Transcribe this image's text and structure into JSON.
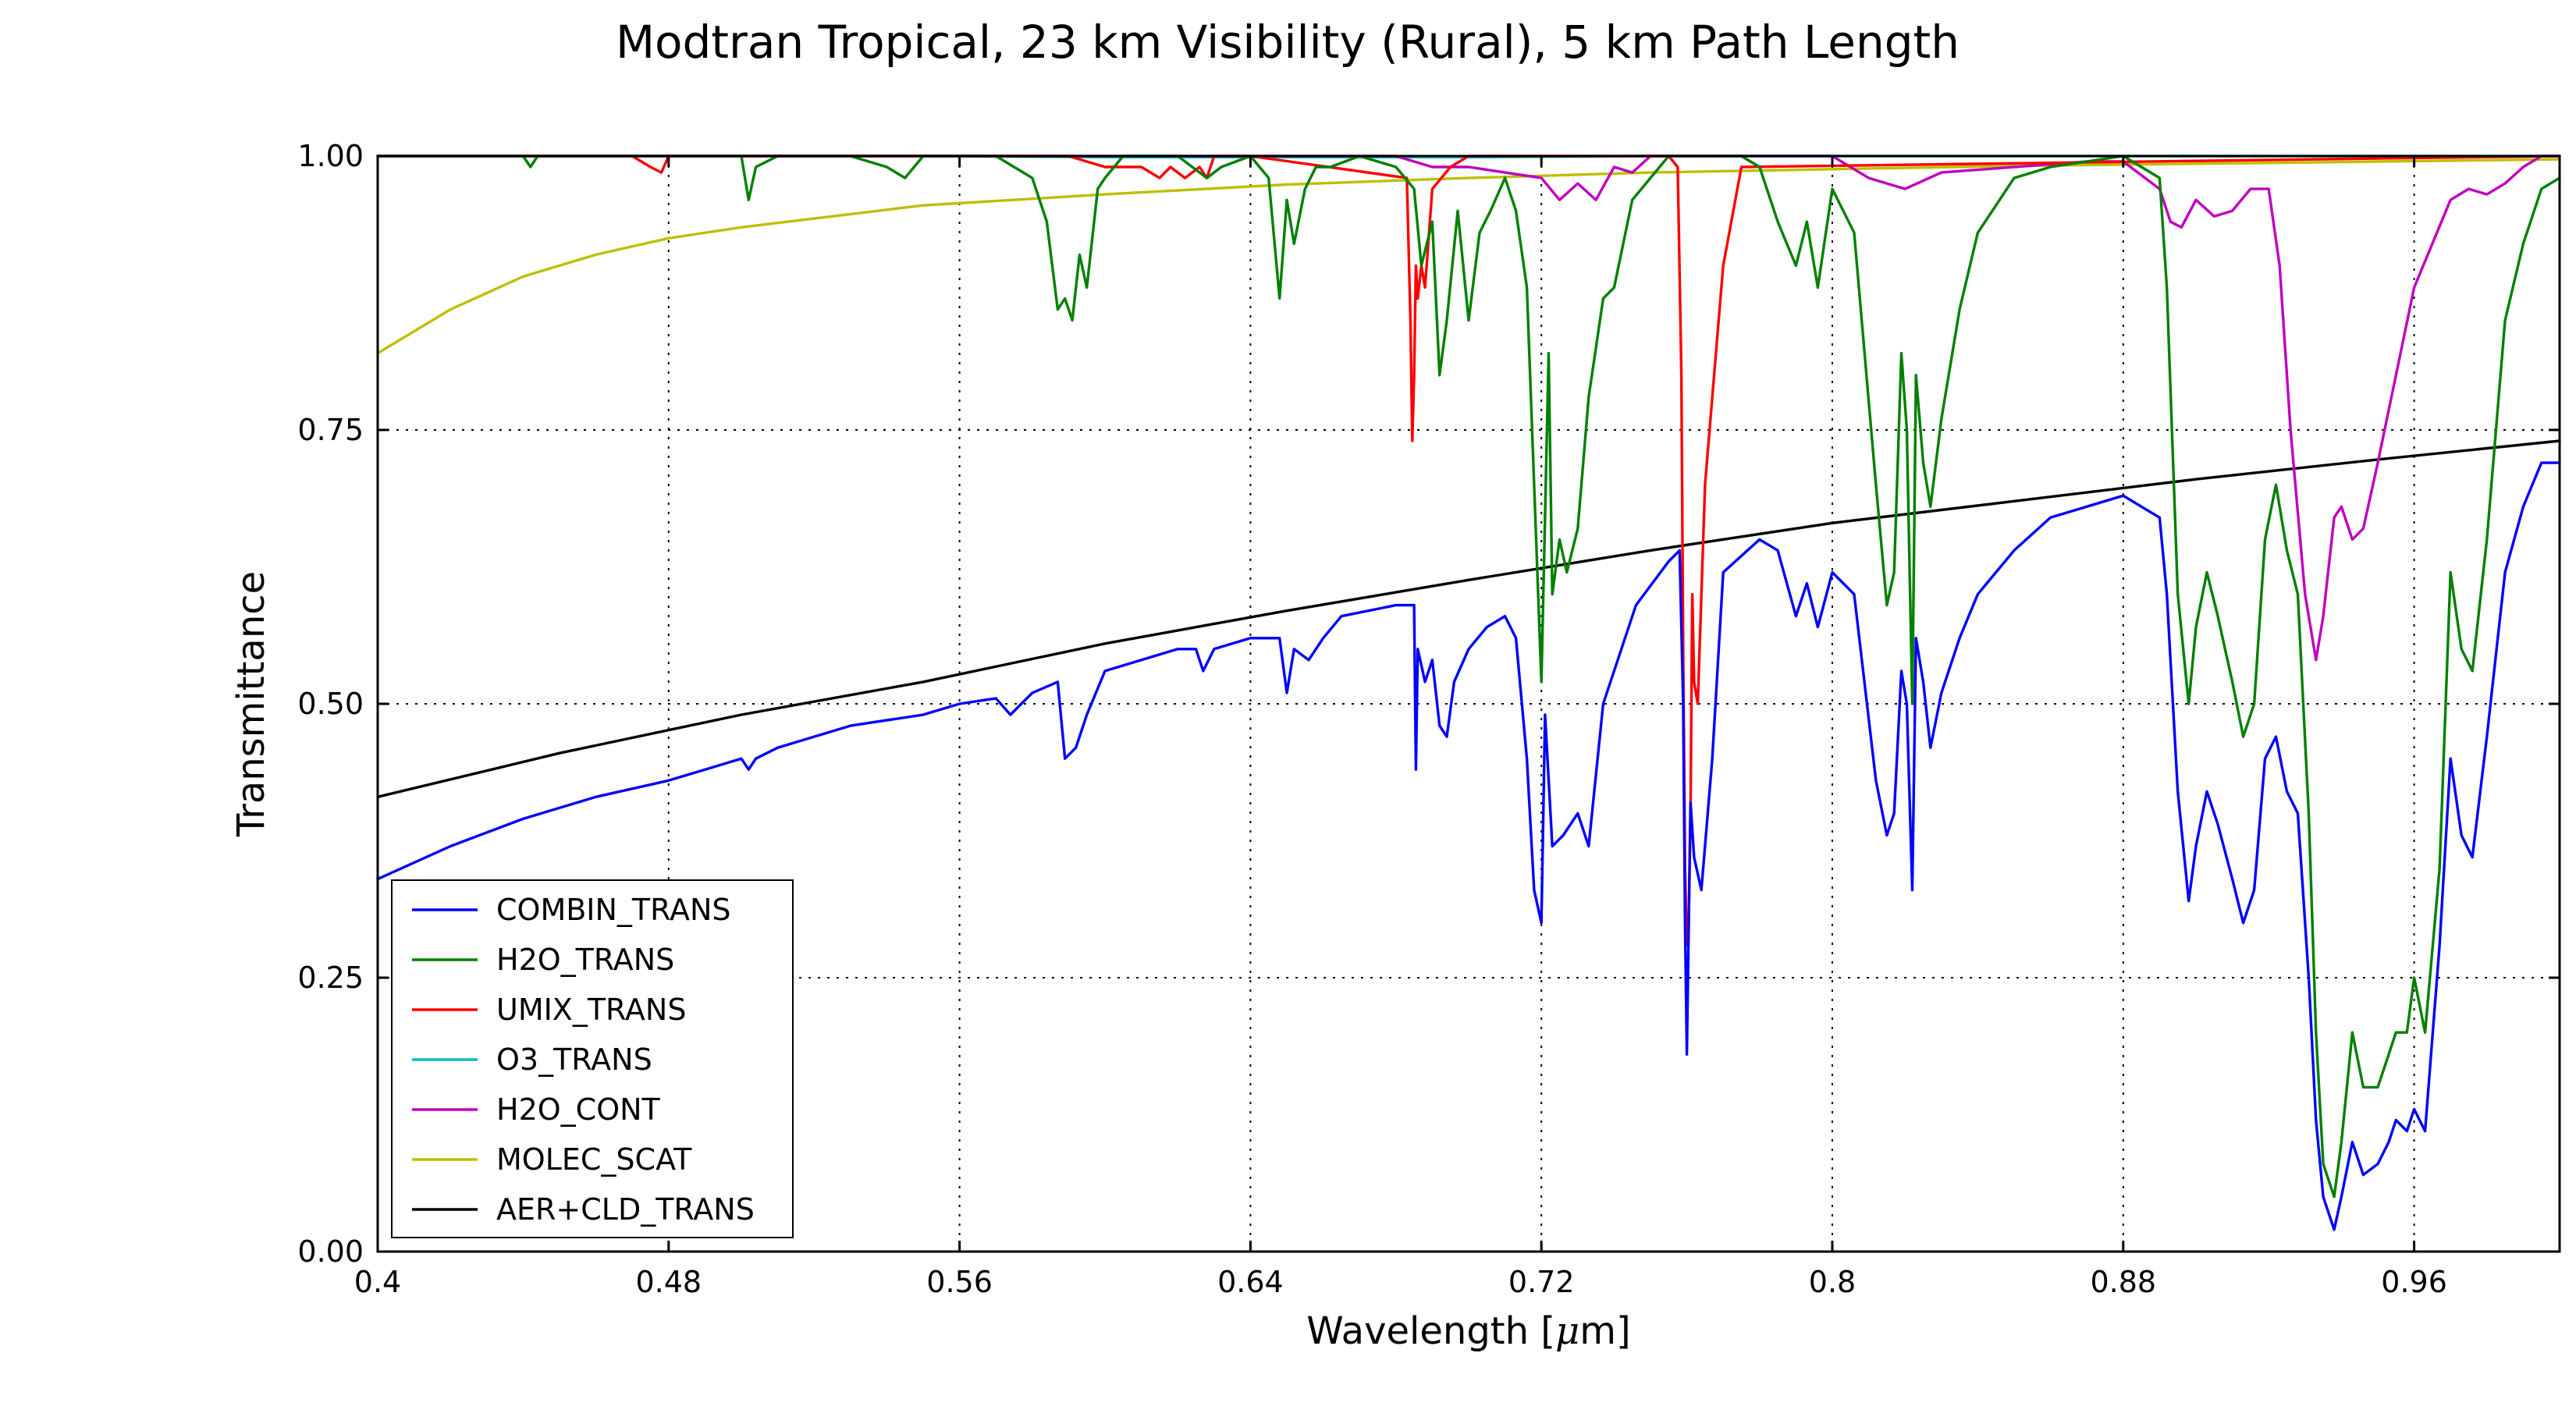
{
  "chart_data": {
    "type": "line",
    "title": "Modtran Tropical, 23 km Visibility (Rural), 5 km Path Length",
    "xlabel": "Wavelength [",
    "xlabel_mu": "μ",
    "xlabel_unit": "m]",
    "ylabel": "Transmittance",
    "xlim": [
      0.4,
      1.0
    ],
    "ylim": [
      0.0,
      1.0
    ],
    "grid": true,
    "legend_position": "lower-left",
    "xticks": [
      "0.4",
      "0.48",
      "0.56",
      "0.64",
      "0.72",
      "0.8",
      "0.88",
      "0.96"
    ],
    "yticks": [
      "0.00",
      "0.25",
      "0.50",
      "0.75",
      "1.00"
    ],
    "series": [
      {
        "name": "COMBIN_TRANS",
        "color": "#0000ff",
        "x": [
          0.4,
          0.42,
          0.44,
          0.46,
          0.48,
          0.5,
          0.502,
          0.504,
          0.51,
          0.53,
          0.55,
          0.56,
          0.57,
          0.574,
          0.58,
          0.587,
          0.589,
          0.592,
          0.595,
          0.6,
          0.62,
          0.625,
          0.627,
          0.63,
          0.64,
          0.648,
          0.65,
          0.652,
          0.656,
          0.66,
          0.665,
          0.68,
          0.685,
          0.6855,
          0.686,
          0.688,
          0.69,
          0.692,
          0.694,
          0.696,
          0.7,
          0.705,
          0.71,
          0.713,
          0.716,
          0.718,
          0.72,
          0.721,
          0.723,
          0.726,
          0.73,
          0.733,
          0.737,
          0.74,
          0.746,
          0.755,
          0.758,
          0.759,
          0.7595,
          0.76,
          0.761,
          0.762,
          0.764,
          0.767,
          0.77,
          0.78,
          0.785,
          0.79,
          0.793,
          0.796,
          0.8,
          0.806,
          0.812,
          0.815,
          0.817,
          0.819,
          0.8205,
          0.822,
          0.823,
          0.825,
          0.827,
          0.83,
          0.835,
          0.84,
          0.85,
          0.86,
          0.88,
          0.885,
          0.89,
          0.892,
          0.895,
          0.898,
          0.9,
          0.903,
          0.906,
          0.91,
          0.913,
          0.916,
          0.919,
          0.922,
          0.925,
          0.928,
          0.931,
          0.933,
          0.935,
          0.938,
          0.94,
          0.943,
          0.946,
          0.95,
          0.953,
          0.955,
          0.958,
          0.96,
          0.963,
          0.967,
          0.97,
          0.973,
          0.976,
          0.98,
          0.985,
          0.99,
          0.995,
          1.0
        ],
        "y": [
          0.34,
          0.37,
          0.395,
          0.415,
          0.43,
          0.45,
          0.44,
          0.45,
          0.46,
          0.48,
          0.49,
          0.5,
          0.505,
          0.49,
          0.51,
          0.52,
          0.45,
          0.46,
          0.49,
          0.53,
          0.55,
          0.55,
          0.53,
          0.55,
          0.56,
          0.56,
          0.51,
          0.55,
          0.54,
          0.56,
          0.58,
          0.59,
          0.59,
          0.44,
          0.55,
          0.52,
          0.54,
          0.48,
          0.47,
          0.52,
          0.55,
          0.57,
          0.58,
          0.56,
          0.45,
          0.33,
          0.3,
          0.49,
          0.37,
          0.38,
          0.4,
          0.37,
          0.5,
          0.53,
          0.59,
          0.63,
          0.64,
          0.5,
          0.3,
          0.18,
          0.41,
          0.36,
          0.33,
          0.45,
          0.62,
          0.65,
          0.64,
          0.58,
          0.61,
          0.57,
          0.62,
          0.6,
          0.43,
          0.38,
          0.4,
          0.53,
          0.5,
          0.33,
          0.56,
          0.52,
          0.46,
          0.51,
          0.56,
          0.6,
          0.64,
          0.67,
          0.69,
          0.68,
          0.67,
          0.6,
          0.42,
          0.32,
          0.37,
          0.42,
          0.39,
          0.34,
          0.3,
          0.33,
          0.45,
          0.47,
          0.42,
          0.4,
          0.25,
          0.12,
          0.05,
          0.02,
          0.05,
          0.1,
          0.07,
          0.08,
          0.1,
          0.12,
          0.11,
          0.13,
          0.11,
          0.28,
          0.45,
          0.38,
          0.36,
          0.47,
          0.62,
          0.68,
          0.72,
          0.72
        ]
      },
      {
        "name": "H2O_TRANS",
        "color": "#008000",
        "x": [
          0.4,
          0.44,
          0.442,
          0.444,
          0.46,
          0.5,
          0.502,
          0.504,
          0.51,
          0.53,
          0.54,
          0.545,
          0.55,
          0.57,
          0.575,
          0.58,
          0.584,
          0.587,
          0.589,
          0.591,
          0.593,
          0.595,
          0.598,
          0.6,
          0.605,
          0.62,
          0.628,
          0.632,
          0.64,
          0.645,
          0.648,
          0.65,
          0.652,
          0.655,
          0.658,
          0.662,
          0.67,
          0.68,
          0.685,
          0.687,
          0.69,
          0.692,
          0.694,
          0.697,
          0.7,
          0.703,
          0.706,
          0.71,
          0.713,
          0.716,
          0.718,
          0.72,
          0.722,
          0.723,
          0.725,
          0.727,
          0.73,
          0.733,
          0.737,
          0.74,
          0.745,
          0.75,
          0.755,
          0.765,
          0.775,
          0.78,
          0.785,
          0.79,
          0.793,
          0.796,
          0.8,
          0.806,
          0.812,
          0.815,
          0.817,
          0.819,
          0.8205,
          0.822,
          0.823,
          0.825,
          0.827,
          0.83,
          0.835,
          0.84,
          0.85,
          0.86,
          0.88,
          0.885,
          0.89,
          0.892,
          0.895,
          0.898,
          0.9,
          0.903,
          0.906,
          0.91,
          0.913,
          0.916,
          0.919,
          0.922,
          0.925,
          0.928,
          0.931,
          0.933,
          0.935,
          0.938,
          0.94,
          0.943,
          0.946,
          0.95,
          0.953,
          0.955,
          0.958,
          0.96,
          0.963,
          0.967,
          0.97,
          0.973,
          0.976,
          0.98,
          0.985,
          0.99,
          0.995,
          1.0
        ],
        "y": [
          1.0,
          1.0,
          0.99,
          1.0,
          1.0,
          1.0,
          0.96,
          0.99,
          1.0,
          1.0,
          0.99,
          0.98,
          1.0,
          1.0,
          0.99,
          0.98,
          0.94,
          0.86,
          0.87,
          0.85,
          0.91,
          0.88,
          0.97,
          0.98,
          1.0,
          1.0,
          0.98,
          0.99,
          1.0,
          0.98,
          0.87,
          0.96,
          0.92,
          0.97,
          0.99,
          0.99,
          1.0,
          0.99,
          0.97,
          0.9,
          0.94,
          0.8,
          0.85,
          0.95,
          0.85,
          0.93,
          0.95,
          0.98,
          0.95,
          0.88,
          0.7,
          0.52,
          0.82,
          0.6,
          0.65,
          0.62,
          0.66,
          0.78,
          0.87,
          0.88,
          0.96,
          0.98,
          1.0,
          1.0,
          1.0,
          0.99,
          0.94,
          0.9,
          0.94,
          0.88,
          0.97,
          0.93,
          0.7,
          0.59,
          0.62,
          0.82,
          0.75,
          0.5,
          0.8,
          0.72,
          0.68,
          0.76,
          0.86,
          0.93,
          0.98,
          0.99,
          1.0,
          0.99,
          0.98,
          0.88,
          0.6,
          0.5,
          0.57,
          0.62,
          0.58,
          0.52,
          0.47,
          0.5,
          0.65,
          0.7,
          0.64,
          0.6,
          0.4,
          0.2,
          0.08,
          0.05,
          0.1,
          0.2,
          0.15,
          0.15,
          0.18,
          0.2,
          0.2,
          0.25,
          0.2,
          0.35,
          0.62,
          0.55,
          0.53,
          0.65,
          0.85,
          0.92,
          0.97,
          0.98
        ]
      },
      {
        "name": "UMIX_TRANS",
        "color": "#ff0000",
        "x": [
          0.4,
          0.47,
          0.475,
          0.478,
          0.48,
          0.59,
          0.6,
          0.61,
          0.615,
          0.618,
          0.622,
          0.626,
          0.628,
          0.63,
          0.64,
          0.683,
          0.684,
          0.6845,
          0.685,
          0.6855,
          0.686,
          0.687,
          0.688,
          0.69,
          0.695,
          0.7,
          0.755,
          0.7575,
          0.7585,
          0.759,
          0.7595,
          0.76,
          0.7605,
          0.761,
          0.7615,
          0.762,
          0.763,
          0.765,
          0.77,
          0.775,
          1.0
        ],
        "y": [
          1.0,
          1.0,
          0.99,
          0.985,
          1.0,
          1.0,
          0.99,
          0.99,
          0.98,
          0.99,
          0.98,
          0.99,
          0.98,
          1.0,
          1.0,
          0.98,
          0.85,
          0.74,
          0.8,
          0.9,
          0.87,
          0.9,
          0.88,
          0.97,
          0.99,
          1.0,
          1.0,
          0.99,
          0.8,
          0.55,
          0.35,
          0.28,
          0.3,
          0.4,
          0.6,
          0.52,
          0.5,
          0.7,
          0.9,
          0.99,
          1.0
        ]
      },
      {
        "name": "O3_TRANS",
        "color": "#00bfbf",
        "x": [
          0.4,
          0.45,
          0.5,
          0.55,
          0.6,
          0.65,
          0.7,
          0.75,
          0.8,
          0.85,
          0.9,
          0.95,
          1.0
        ],
        "y": [
          1.0,
          1.0,
          1.0,
          1.0,
          0.999,
          0.999,
          0.999,
          1.0,
          1.0,
          1.0,
          1.0,
          1.0,
          1.0
        ]
      },
      {
        "name": "H2O_CONT",
        "color": "#bf00bf",
        "x": [
          0.4,
          0.68,
          0.69,
          0.7,
          0.72,
          0.725,
          0.73,
          0.735,
          0.74,
          0.745,
          0.75,
          0.8,
          0.81,
          0.82,
          0.83,
          0.87,
          0.88,
          0.89,
          0.893,
          0.896,
          0.9,
          0.905,
          0.91,
          0.915,
          0.92,
          0.923,
          0.926,
          0.93,
          0.933,
          0.935,
          0.938,
          0.94,
          0.943,
          0.946,
          0.95,
          0.955,
          0.96,
          0.965,
          0.97,
          0.975,
          0.98,
          0.985,
          0.99,
          0.995,
          1.0
        ],
        "y": [
          1.0,
          1.0,
          0.99,
          0.99,
          0.98,
          0.96,
          0.975,
          0.96,
          0.99,
          0.985,
          1.0,
          1.0,
          0.98,
          0.97,
          0.985,
          0.995,
          0.995,
          0.97,
          0.94,
          0.935,
          0.96,
          0.945,
          0.95,
          0.97,
          0.97,
          0.9,
          0.75,
          0.6,
          0.54,
          0.58,
          0.67,
          0.68,
          0.65,
          0.66,
          0.72,
          0.8,
          0.88,
          0.92,
          0.96,
          0.97,
          0.965,
          0.975,
          0.99,
          1.0,
          1.0
        ]
      },
      {
        "name": "MOLEC_SCAT",
        "color": "#bfbf00",
        "x": [
          0.4,
          0.42,
          0.44,
          0.46,
          0.48,
          0.5,
          0.55,
          0.6,
          0.65,
          0.7,
          0.75,
          0.8,
          0.85,
          0.9,
          0.95,
          1.0
        ],
        "y": [
          0.82,
          0.86,
          0.89,
          0.91,
          0.925,
          0.935,
          0.955,
          0.965,
          0.974,
          0.98,
          0.985,
          0.988,
          0.991,
          0.993,
          0.995,
          0.997
        ]
      },
      {
        "name": "AER+CLD_TRANS",
        "color": "#000000",
        "x": [
          0.4,
          0.45,
          0.5,
          0.55,
          0.6,
          0.65,
          0.7,
          0.75,
          0.8,
          0.85,
          0.9,
          0.95,
          1.0
        ],
        "y": [
          0.415,
          0.455,
          0.49,
          0.52,
          0.555,
          0.585,
          0.613,
          0.64,
          0.665,
          0.685,
          0.705,
          0.723,
          0.74
        ]
      }
    ]
  }
}
